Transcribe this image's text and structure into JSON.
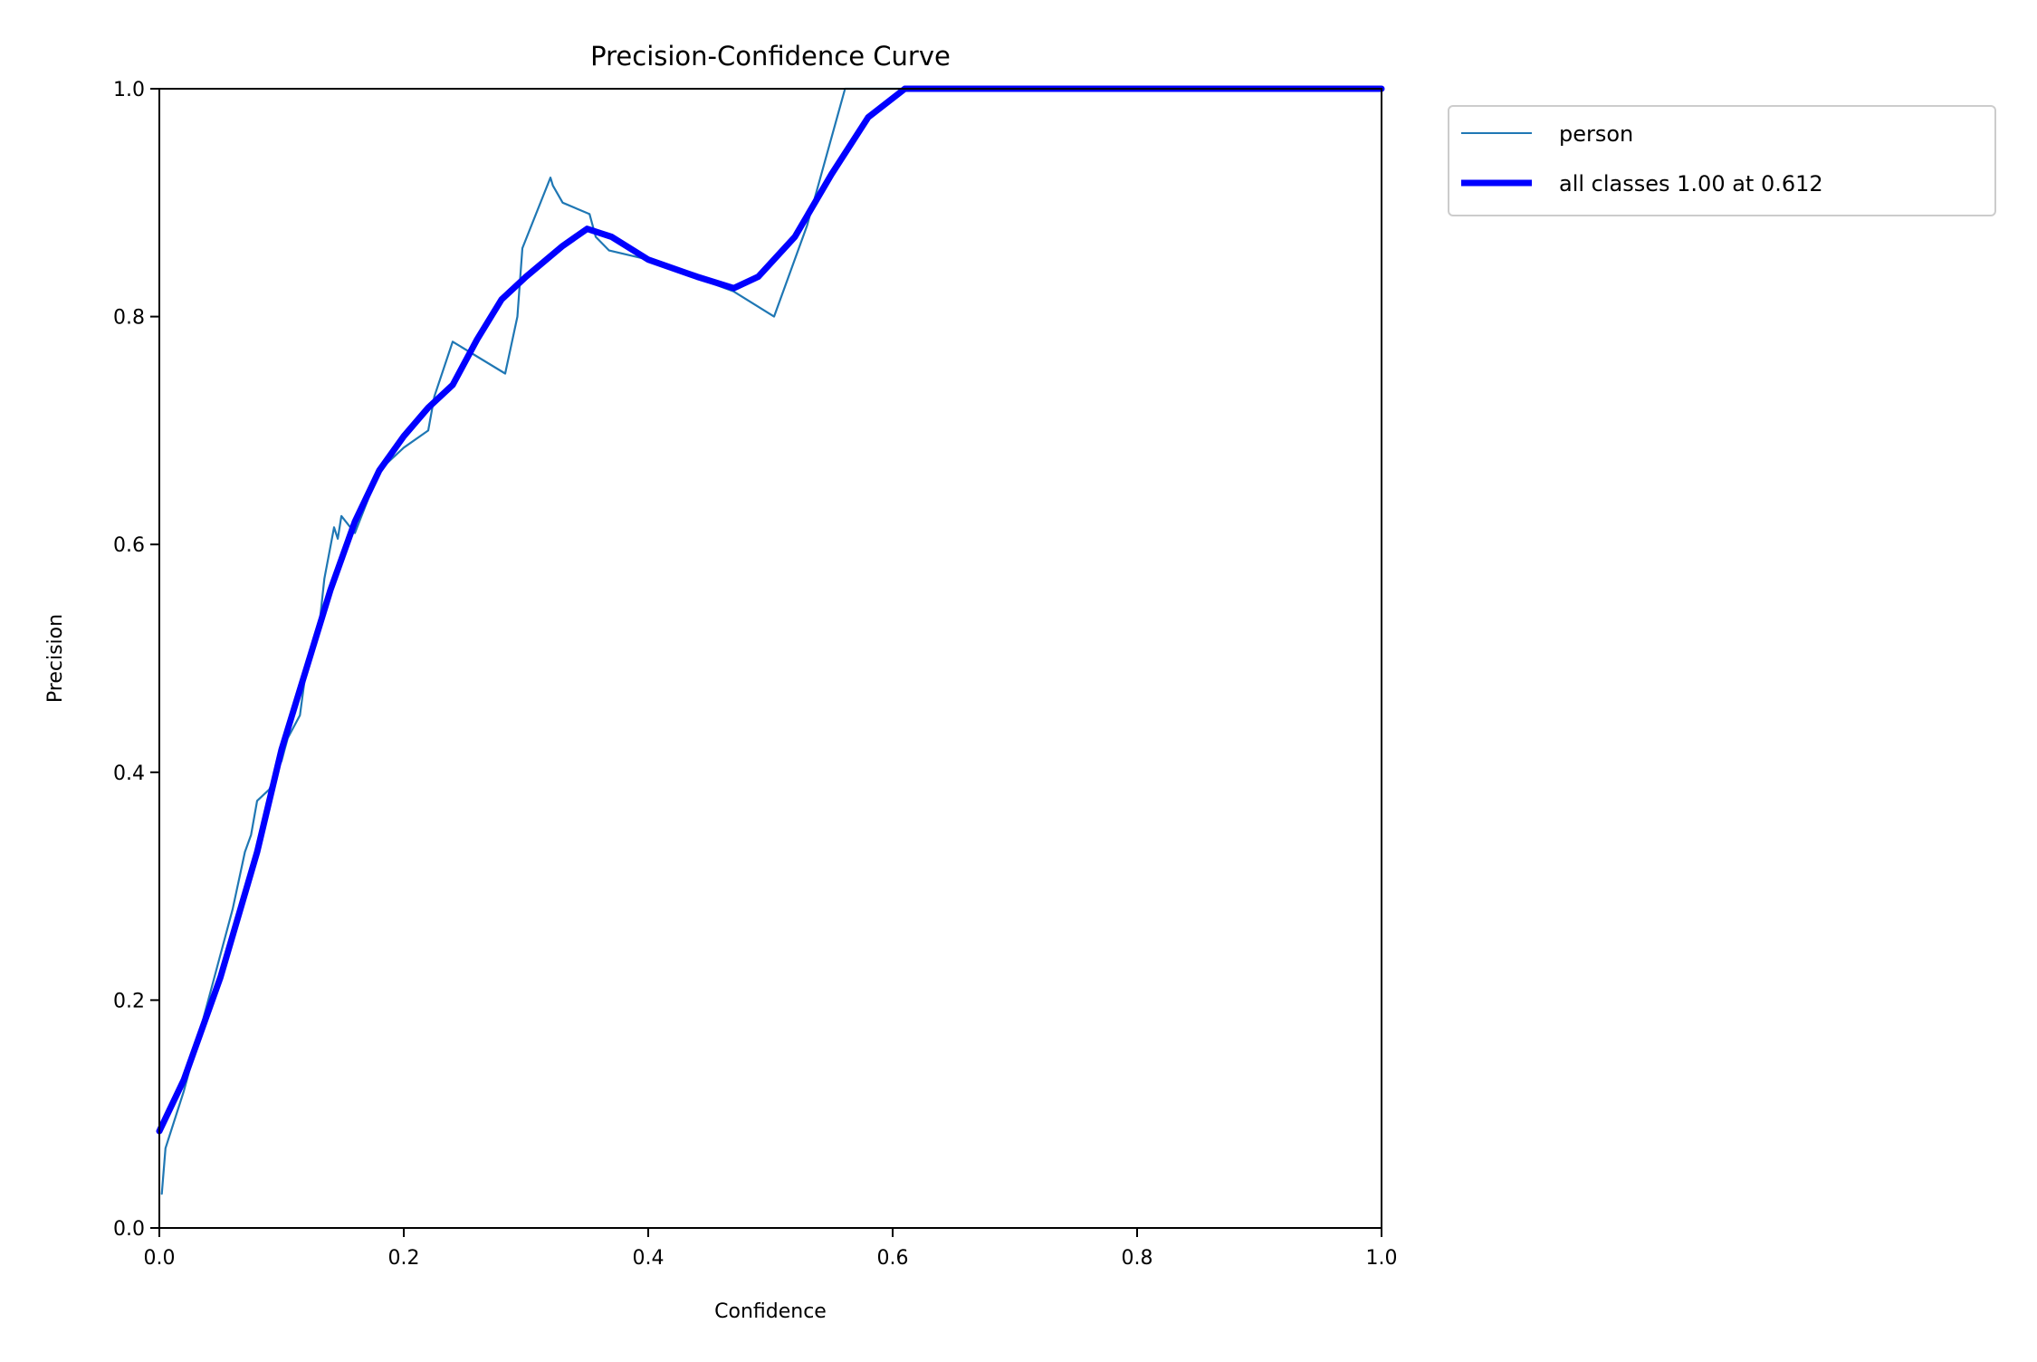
{
  "chart_data": {
    "type": "line",
    "title": "Precision-Confidence Curve",
    "xlabel": "Confidence",
    "ylabel": "Precision",
    "xlim": [
      0,
      1
    ],
    "ylim": [
      0,
      1
    ],
    "xticks": [
      "0.0",
      "0.2",
      "0.4",
      "0.6",
      "0.8",
      "1.0"
    ],
    "yticks": [
      "0.0",
      "0.2",
      "0.4",
      "0.6",
      "0.8",
      "1.0"
    ],
    "grid": false,
    "legend_position": "outside-top-right",
    "series": [
      {
        "name": "person",
        "color": "#1f77b4",
        "x": [
          0.002,
          0.005,
          0.02,
          0.035,
          0.05,
          0.06,
          0.07,
          0.075,
          0.08,
          0.09,
          0.1,
          0.105,
          0.115,
          0.12,
          0.13,
          0.135,
          0.143,
          0.146,
          0.149,
          0.16,
          0.18,
          0.2,
          0.22,
          0.225,
          0.24,
          0.283,
          0.293,
          0.297,
          0.32,
          0.322,
          0.33,
          0.352,
          0.357,
          0.368,
          0.4,
          0.45,
          0.47,
          0.503,
          0.53,
          0.561,
          1.0
        ],
        "y": [
          0.03,
          0.07,
          0.12,
          0.18,
          0.24,
          0.28,
          0.33,
          0.345,
          0.375,
          0.385,
          0.41,
          0.43,
          0.45,
          0.49,
          0.52,
          0.57,
          0.615,
          0.605,
          0.625,
          0.61,
          0.665,
          0.685,
          0.7,
          0.73,
          0.778,
          0.75,
          0.8,
          0.86,
          0.922,
          0.915,
          0.9,
          0.89,
          0.87,
          0.858,
          0.85,
          0.83,
          0.822,
          0.8,
          0.88,
          1.0,
          1.0
        ]
      },
      {
        "name": "all classes 1.00 at 0.612",
        "color": "#0000ff",
        "x": [
          0,
          0.02,
          0.05,
          0.08,
          0.1,
          0.12,
          0.14,
          0.16,
          0.18,
          0.2,
          0.22,
          0.24,
          0.26,
          0.28,
          0.3,
          0.33,
          0.35,
          0.37,
          0.4,
          0.44,
          0.47,
          0.49,
          0.52,
          0.55,
          0.58,
          0.61,
          1.0
        ],
        "y": [
          0.085,
          0.13,
          0.22,
          0.33,
          0.42,
          0.49,
          0.56,
          0.62,
          0.665,
          0.695,
          0.72,
          0.74,
          0.78,
          0.815,
          0.835,
          0.862,
          0.877,
          0.87,
          0.85,
          0.835,
          0.825,
          0.835,
          0.87,
          0.925,
          0.975,
          1.0,
          1.0
        ]
      }
    ]
  }
}
